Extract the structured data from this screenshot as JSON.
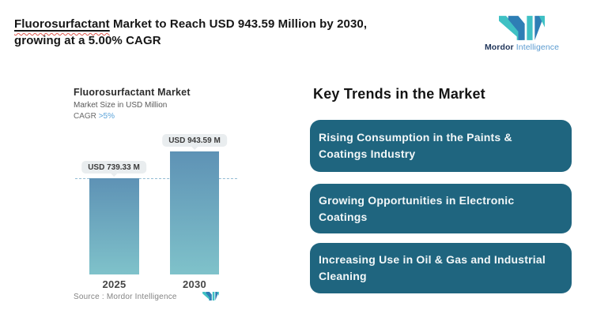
{
  "header": {
    "title_word_underlined": "Fluorosurfactant",
    "title_rest": " Market to Reach USD 943.59 Million by 2030, growing at a 5.00% CAGR",
    "brand": {
      "name_bold": "Mordor",
      "name_light": "Intelligence"
    }
  },
  "chart_data": {
    "type": "bar",
    "title": "Fluorosurfactant Market",
    "subtitle": "Market Size in USD Million",
    "cagr_label": "CAGR",
    "cagr_value": ">5%",
    "categories": [
      "2025",
      "2030"
    ],
    "values": [
      739.33,
      943.59
    ],
    "value_labels": [
      "USD 739.33 M",
      "USD 943.59 M"
    ],
    "ylim": [
      0,
      943.59
    ],
    "grid": false,
    "legend": "none",
    "reference_line": {
      "value": 739.33,
      "style": "dashed"
    },
    "source": "Source :  Mordor Intelligence"
  },
  "trends": {
    "heading": "Key Trends in the Market",
    "items": [
      "Rising Consumption in the Paints & Coatings Industry",
      "Growing Opportunities in Electronic Coatings",
      "Increasing Use in Oil & Gas and Industrial Cleaning"
    ]
  },
  "colors": {
    "trend_box": "#1f657f",
    "bar_gradient_top": "#5e92b5",
    "bar_gradient_bottom": "#7fc2ca",
    "dashed_line": "#93bcd4",
    "badge_bg": "#e9edef",
    "cagr_accent": "#5ba3d9",
    "logo_blue": "#2e7eb5",
    "logo_teal": "#3fc1c4",
    "title_underline_squiggle": "#e0584e"
  }
}
